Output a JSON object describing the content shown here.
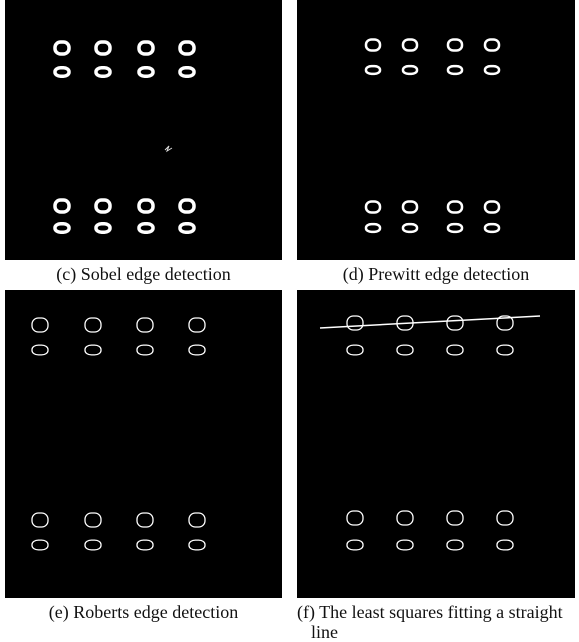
{
  "panels": [
    {
      "caption": "(c) Sobel edge detection"
    },
    {
      "caption": "(d) Prewitt edge detection"
    },
    {
      "caption": "(e) Roberts edge detection"
    },
    {
      "caption": "(f) The least squares fitting a straight line"
    }
  ]
}
